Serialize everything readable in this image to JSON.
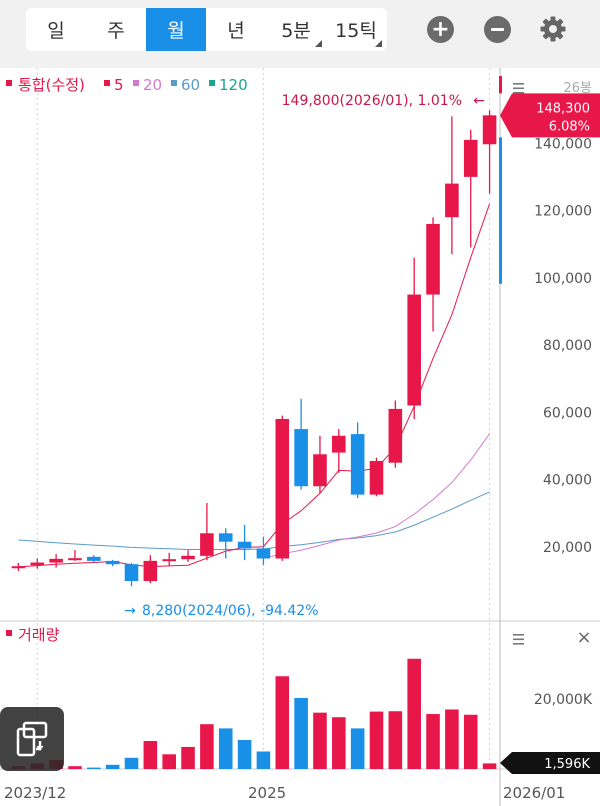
{
  "tabs": [
    {
      "label": "일",
      "active": false,
      "has_menu": false
    },
    {
      "label": "주",
      "active": false,
      "has_menu": false
    },
    {
      "label": "월",
      "active": true,
      "has_menu": false
    },
    {
      "label": "년",
      "active": false,
      "has_menu": false
    },
    {
      "label": "5분",
      "active": false,
      "has_menu": true
    },
    {
      "label": "15틱",
      "active": false,
      "has_menu": true
    }
  ],
  "toolbar": {
    "zoom_in_icon": "plus-circle-icon",
    "zoom_out_icon": "minus-circle-icon",
    "settings_icon": "gear-icon",
    "rotate_icon": "rotate-screen-icon"
  },
  "legend": {
    "main_label": "통합(수정)",
    "ma": [
      {
        "label": "5",
        "color": "#e8174a"
      },
      {
        "label": "20",
        "color": "#d678d0"
      },
      {
        "label": "60",
        "color": "#5b9bc9"
      },
      {
        "label": "120",
        "color": "#1aa58f"
      }
    ]
  },
  "price_panel": {
    "count_label": "26봉",
    "max_annotation": "149,800(2026/01), 1.01%",
    "max_arrow": "←",
    "min_annotation": "8,280(2024/06), -94.42%",
    "min_arrow": "→",
    "current_price": "148,300",
    "current_change": "6.08%",
    "y_ticks": [
      "140,000",
      "120,000",
      "100,000",
      "80,000",
      "60,000",
      "40,000",
      "20,000"
    ],
    "menu_icon": "hamburger-menu-icon"
  },
  "volume_panel": {
    "label": "거래량",
    "y_tick": "20,000K",
    "current_volume": "1,596K",
    "menu_icon": "hamburger-menu-icon",
    "close_icon": "close-icon"
  },
  "x_labels": [
    "2023/12",
    "2025",
    "2026/01"
  ],
  "colors": {
    "up": "#e8174a",
    "down": "#1a8fe8",
    "accent": "#1a8fe8",
    "annotation_up": "#c8174a",
    "annotation_down": "#1a8fe8"
  },
  "chart_data": {
    "type": "candlestick",
    "period": "monthly",
    "x": [
      "2023/12",
      "2024/01",
      "2024/02",
      "2024/03",
      "2024/04",
      "2024/05",
      "2024/06",
      "2024/07",
      "2024/08",
      "2024/09",
      "2024/10",
      "2024/11",
      "2024/12",
      "2025/01",
      "2025/02",
      "2025/03",
      "2025/04",
      "2025/05",
      "2025/06",
      "2025/07",
      "2025/08",
      "2025/09",
      "2025/10",
      "2025/11",
      "2025/12",
      "2026/01"
    ],
    "candles": [
      {
        "o": 13800,
        "h": 15200,
        "l": 12800,
        "c": 14200
      },
      {
        "o": 14500,
        "h": 16500,
        "l": 13500,
        "c": 15300
      },
      {
        "o": 15300,
        "h": 17800,
        "l": 13800,
        "c": 16400
      },
      {
        "o": 16400,
        "h": 19000,
        "l": 15800,
        "c": 16600
      },
      {
        "o": 17000,
        "h": 17500,
        "l": 15200,
        "c": 15800
      },
      {
        "o": 15800,
        "h": 16100,
        "l": 14200,
        "c": 14800
      },
      {
        "o": 14800,
        "h": 15200,
        "l": 8280,
        "c": 9800
      },
      {
        "o": 9800,
        "h": 17500,
        "l": 9200,
        "c": 15800
      },
      {
        "o": 15800,
        "h": 18200,
        "l": 14200,
        "c": 16300
      },
      {
        "o": 16300,
        "h": 19000,
        "l": 15500,
        "c": 17300
      },
      {
        "o": 17300,
        "h": 33000,
        "l": 16000,
        "c": 24000
      },
      {
        "o": 24000,
        "h": 25500,
        "l": 16500,
        "c": 21500
      },
      {
        "o": 21500,
        "h": 26500,
        "l": 16000,
        "c": 19500
      },
      {
        "o": 19500,
        "h": 23000,
        "l": 14500,
        "c": 16500
      },
      {
        "o": 16500,
        "h": 59000,
        "l": 15800,
        "c": 58000
      },
      {
        "o": 55000,
        "h": 64000,
        "l": 37000,
        "c": 38000
      },
      {
        "o": 38000,
        "h": 53000,
        "l": 36000,
        "c": 47500
      },
      {
        "o": 48000,
        "h": 55000,
        "l": 42000,
        "c": 53000
      },
      {
        "o": 53500,
        "h": 57000,
        "l": 34500,
        "c": 35500
      },
      {
        "o": 35500,
        "h": 46500,
        "l": 35000,
        "c": 45500
      },
      {
        "o": 45000,
        "h": 63500,
        "l": 43500,
        "c": 61000
      },
      {
        "o": 62000,
        "h": 106000,
        "l": 58000,
        "c": 95000
      },
      {
        "o": 95000,
        "h": 118000,
        "l": 84000,
        "c": 116000
      },
      {
        "o": 118000,
        "h": 148000,
        "l": 107000,
        "c": 128000
      },
      {
        "o": 130000,
        "h": 144000,
        "l": 109000,
        "c": 141000
      },
      {
        "o": 139700,
        "h": 149800,
        "l": 125000,
        "c": 148300
      }
    ],
    "volume_k": [
      800,
      1600,
      2600,
      800,
      400,
      1200,
      3200,
      8000,
      4200,
      6300,
      12800,
      11600,
      8300,
      5000,
      26500,
      20300,
      16100,
      14800,
      11600,
      16400,
      16500,
      31500,
      15700,
      17000,
      15500,
      1596
    ],
    "ma": {
      "5": [
        14000,
        14400,
        14800,
        15100,
        15300,
        15600,
        14600,
        14100,
        14300,
        14500,
        16600,
        18700,
        19800,
        20000,
        26800,
        30700,
        35900,
        42700,
        42500,
        43300,
        49500,
        61800,
        76000,
        89000,
        106000,
        122000
      ],
      "20": [
        null,
        null,
        null,
        null,
        null,
        null,
        null,
        null,
        null,
        null,
        null,
        null,
        null,
        16600,
        17900,
        19000,
        20400,
        22000,
        22900,
        24100,
        26000,
        29700,
        34000,
        39100,
        45800,
        53600
      ],
      "60": [
        22000,
        21600,
        21200,
        20800,
        20500,
        20200,
        19800,
        19600,
        19400,
        19200,
        19200,
        19200,
        19200,
        19300,
        20100,
        20600,
        21300,
        22200,
        22600,
        23300,
        24400,
        26400,
        28800,
        31200,
        33800,
        36300
      ],
      "120": []
    },
    "ylim": [
      0,
      160000
    ],
    "volume_ylim": [
      0,
      36000
    ],
    "max": {
      "value": 149800,
      "date": "2026/01",
      "pct": "1.01%"
    },
    "min": {
      "value": 8280,
      "date": "2024/06",
      "pct": "-94.42%"
    }
  }
}
